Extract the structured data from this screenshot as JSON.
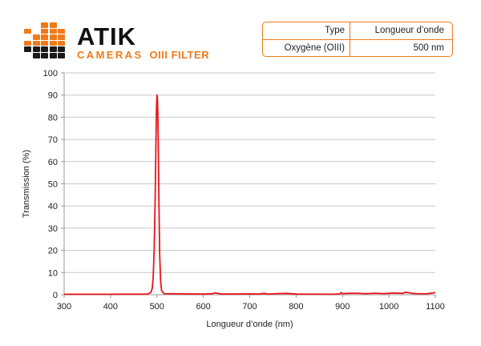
{
  "logo": {
    "brand": "ATIK",
    "sub": "CAMERAS",
    "filter": "OIII FILTER",
    "accent_color": "#f07a1a",
    "dark_color": "#1a1a1a"
  },
  "info_table": {
    "header": {
      "col1": "Type",
      "col2": "Longueur d’onde"
    },
    "row": {
      "col1": "Oxygène (OIII)",
      "col2": "500 nm"
    }
  },
  "chart_data": {
    "type": "line",
    "xlabel": "Longueur d’onde (nm)",
    "ylabel": "Transmission (%)",
    "xlim": [
      300,
      1100
    ],
    "ylim": [
      0,
      100
    ],
    "xticks": [
      300,
      400,
      500,
      600,
      700,
      800,
      900,
      1000,
      1100
    ],
    "yticks": [
      0,
      10,
      20,
      30,
      40,
      50,
      60,
      70,
      80,
      90,
      100
    ],
    "grid": true,
    "line_color": "#e8141b",
    "series": [
      {
        "name": "",
        "x": [
          300,
          400,
          480,
          487,
          490,
          492,
          494,
          496,
          497,
          498,
          499,
          500,
          501,
          502,
          503,
          504,
          506,
          508,
          510,
          515,
          600,
          620,
          625,
          630,
          640,
          700,
          720,
          730,
          740,
          760,
          780,
          800,
          880,
          895,
          897,
          900,
          910,
          930,
          950,
          970,
          990,
          1010,
          1030,
          1035,
          1040,
          1050,
          1060,
          1080,
          1095,
          1100
        ],
        "y": [
          0.2,
          0.2,
          0.3,
          1.0,
          3.0,
          8.0,
          20.0,
          40.0,
          55.0,
          70.0,
          84.0,
          90.0,
          89.0,
          82.0,
          65.0,
          45.0,
          18.0,
          6.0,
          2.0,
          0.5,
          0.3,
          0.5,
          0.8,
          0.6,
          0.3,
          0.4,
          0.3,
          0.6,
          0.3,
          0.5,
          0.6,
          0.3,
          0.2,
          0.4,
          1.0,
          0.5,
          0.6,
          0.7,
          0.5,
          0.7,
          0.5,
          0.8,
          0.6,
          1.1,
          1.0,
          0.6,
          0.5,
          0.4,
          0.8,
          1.0
        ]
      }
    ]
  }
}
